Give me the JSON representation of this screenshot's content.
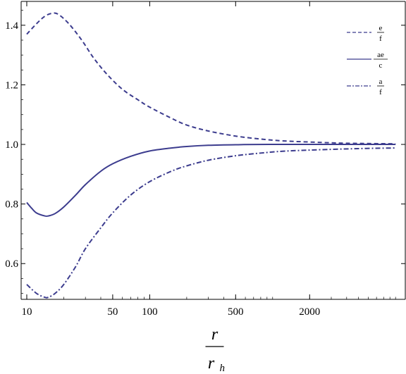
{
  "chart_data": {
    "type": "line",
    "x_scale": "log",
    "xlim": [
      9,
      12000
    ],
    "ylim": [
      0.48,
      1.48
    ],
    "grid": false,
    "legend_position": "top-right",
    "line_color": "#3c3c8e",
    "xlabel": {
      "numerator": "r",
      "denominator": "r",
      "denominator_subscript": "h"
    },
    "x_ticks": [
      {
        "value": 10,
        "label": "10"
      },
      {
        "value": 50,
        "label": "50"
      },
      {
        "value": 100,
        "label": "100"
      },
      {
        "value": 500,
        "label": "500"
      },
      {
        "value": 2000,
        "label": "2000"
      }
    ],
    "y_ticks": [
      {
        "value": 0.6,
        "label": "0.6"
      },
      {
        "value": 0.8,
        "label": "0.8"
      },
      {
        "value": 1.0,
        "label": "1.0"
      },
      {
        "value": 1.2,
        "label": "1.2"
      },
      {
        "value": 1.4,
        "label": "1.4"
      }
    ],
    "series": [
      {
        "name_numerator": "e",
        "name_denominator": "f",
        "dash": "dashed",
        "points": [
          [
            10,
            1.37
          ],
          [
            12,
            1.405
          ],
          [
            14,
            1.43
          ],
          [
            16,
            1.44
          ],
          [
            18,
            1.437
          ],
          [
            22,
            1.405
          ],
          [
            28,
            1.35
          ],
          [
            35,
            1.29
          ],
          [
            45,
            1.235
          ],
          [
            60,
            1.185
          ],
          [
            80,
            1.15
          ],
          [
            100,
            1.125
          ],
          [
            150,
            1.088
          ],
          [
            200,
            1.065
          ],
          [
            300,
            1.045
          ],
          [
            500,
            1.028
          ],
          [
            800,
            1.018
          ],
          [
            1200,
            1.012
          ],
          [
            2000,
            1.008
          ],
          [
            4000,
            1.004
          ],
          [
            10000,
            1.002
          ]
        ]
      },
      {
        "name_numerator": "ae",
        "name_denominator": "c",
        "dash": "solid",
        "points": [
          [
            10,
            0.805
          ],
          [
            11,
            0.785
          ],
          [
            12,
            0.77
          ],
          [
            14,
            0.76
          ],
          [
            15,
            0.76
          ],
          [
            17,
            0.768
          ],
          [
            20,
            0.79
          ],
          [
            25,
            0.83
          ],
          [
            30,
            0.865
          ],
          [
            40,
            0.91
          ],
          [
            50,
            0.935
          ],
          [
            70,
            0.96
          ],
          [
            100,
            0.978
          ],
          [
            150,
            0.988
          ],
          [
            200,
            0.993
          ],
          [
            300,
            0.997
          ],
          [
            500,
            0.999
          ],
          [
            1000,
            1.0
          ],
          [
            10000,
            1.0
          ]
        ]
      },
      {
        "name_numerator": "a",
        "name_denominator": "f",
        "dash": "dashdot",
        "points": [
          [
            10,
            0.53
          ],
          [
            12,
            0.5
          ],
          [
            14,
            0.487
          ],
          [
            15,
            0.487
          ],
          [
            17,
            0.5
          ],
          [
            20,
            0.53
          ],
          [
            25,
            0.59
          ],
          [
            30,
            0.65
          ],
          [
            40,
            0.72
          ],
          [
            50,
            0.77
          ],
          [
            70,
            0.83
          ],
          [
            100,
            0.875
          ],
          [
            150,
            0.91
          ],
          [
            200,
            0.928
          ],
          [
            300,
            0.947
          ],
          [
            500,
            0.962
          ],
          [
            800,
            0.971
          ],
          [
            1200,
            0.977
          ],
          [
            2000,
            0.981
          ],
          [
            5000,
            0.986
          ],
          [
            10000,
            0.988
          ]
        ]
      }
    ]
  }
}
